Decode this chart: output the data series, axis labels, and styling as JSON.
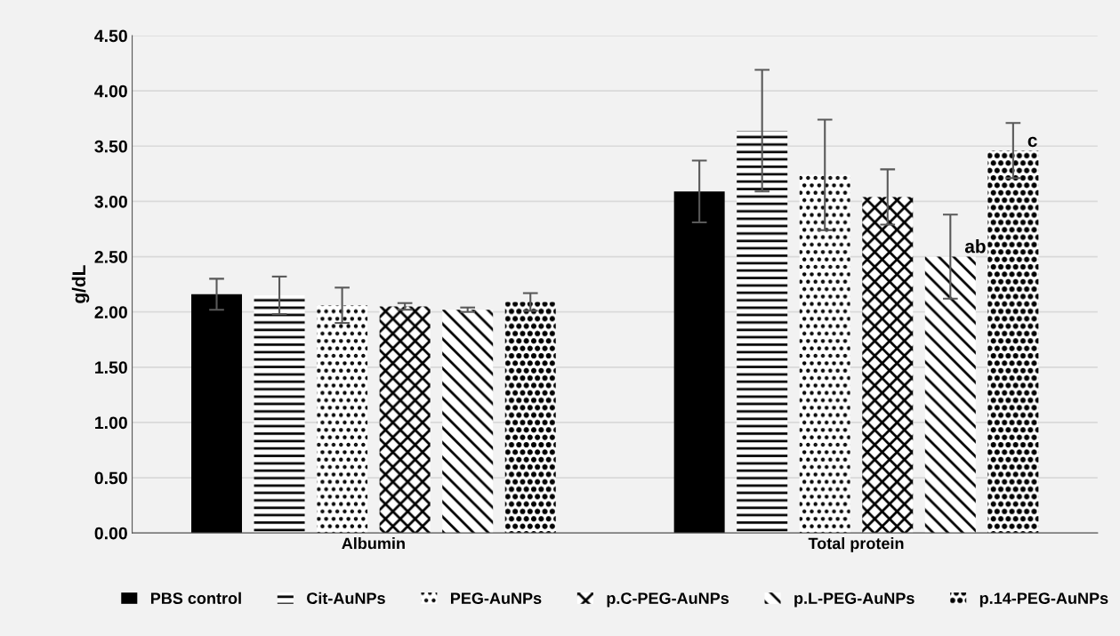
{
  "chart_data": {
    "type": "bar",
    "ylabel": "g/dL",
    "categories": [
      "Albumin",
      "Total protein"
    ],
    "ylim": [
      0,
      4.5
    ],
    "yticks": [
      {
        "value": 0,
        "label": "0.00"
      },
      {
        "value": 0.5,
        "label": "0.50"
      },
      {
        "value": 1,
        "label": "1.00"
      },
      {
        "value": 1.5,
        "label": "1.50"
      },
      {
        "value": 2,
        "label": "2.00"
      },
      {
        "value": 2.5,
        "label": "2.50"
      },
      {
        "value": 3,
        "label": "3.00"
      },
      {
        "value": 3.5,
        "label": "3.50"
      },
      {
        "value": 4,
        "label": "4.00"
      },
      {
        "value": 4.5,
        "label": "4.50"
      }
    ],
    "grid": "y",
    "legend": "bottom",
    "series": [
      {
        "name": "PBS control",
        "color": "#000000",
        "values": [
          2.16,
          3.09
        ],
        "errors": [
          0.14,
          0.28
        ]
      },
      {
        "name": "Cit-AuNPs",
        "color": "#000000",
        "values": [
          2.15,
          3.64
        ],
        "errors": [
          0.17,
          0.55
        ]
      },
      {
        "name": "PEG-AuNPs",
        "color": "#000000",
        "values": [
          2.06,
          3.24
        ],
        "errors": [
          0.16,
          0.5
        ]
      },
      {
        "name": "p.C-PEG-AuNPs",
        "color": "#000000",
        "values": [
          2.05,
          3.04
        ],
        "errors": [
          0.03,
          0.25
        ]
      },
      {
        "name": "p.L-PEG-AuNPs",
        "color": "#000000",
        "values": [
          2.02,
          2.5
        ],
        "errors": [
          0.02,
          0.38
        ],
        "value_labels": [
          null,
          "ab"
        ]
      },
      {
        "name": "p.14-PEG-AuNPs",
        "color": "#000000",
        "values": [
          2.09,
          3.46
        ],
        "errors": [
          0.08,
          0.25
        ],
        "value_labels": [
          null,
          "c"
        ]
      }
    ]
  }
}
